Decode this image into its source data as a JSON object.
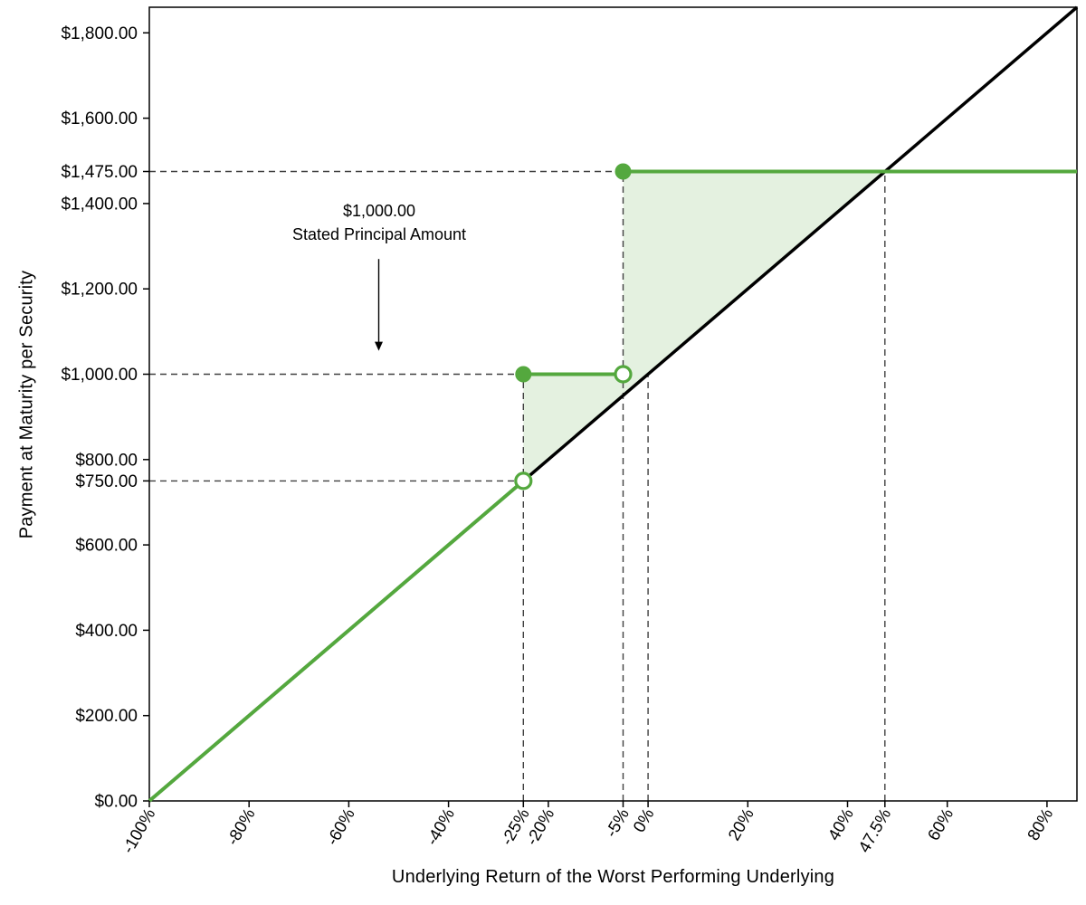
{
  "chart_data": {
    "type": "line",
    "title": "",
    "xlabel": "Underlying Return of the Worst Performing Underlying",
    "ylabel": "Payment at Maturity per Security",
    "xlim": [
      -100,
      86
    ],
    "ylim": [
      0,
      1860
    ],
    "grid": false,
    "legend": "none",
    "x_ticks": [
      {
        "v": -100,
        "label": "-100%"
      },
      {
        "v": -80,
        "label": "-80%"
      },
      {
        "v": -60,
        "label": "-60%"
      },
      {
        "v": -40,
        "label": "-40%"
      },
      {
        "v": -25,
        "label": "-25%"
      },
      {
        "v": -20,
        "label": "-20%"
      },
      {
        "v": -5,
        "label": "-5%"
      },
      {
        "v": 0,
        "label": "0%"
      },
      {
        "v": 20,
        "label": "20%"
      },
      {
        "v": 40,
        "label": "40%"
      },
      {
        "v": 47.5,
        "label": "47.5%"
      },
      {
        "v": 60,
        "label": "60%"
      },
      {
        "v": 80,
        "label": "80%"
      }
    ],
    "y_ticks": [
      {
        "v": 0,
        "label": "$0.00"
      },
      {
        "v": 200,
        "label": "$200.00"
      },
      {
        "v": 400,
        "label": "$400.00"
      },
      {
        "v": 600,
        "label": "$600.00"
      },
      {
        "v": 750,
        "label": "$750.00"
      },
      {
        "v": 800,
        "label": "$800.00"
      },
      {
        "v": 1000,
        "label": "$1,000.00"
      },
      {
        "v": 1200,
        "label": "$1,200.00"
      },
      {
        "v": 1400,
        "label": "$1,400.00"
      },
      {
        "v": 1475,
        "label": "$1,475.00"
      },
      {
        "v": 1600,
        "label": "$1,600.00"
      },
      {
        "v": 1800,
        "label": "$1,800.00"
      }
    ],
    "series": [
      {
        "name": "underlying-return-line",
        "color": "#000000",
        "width": 3.5,
        "segments": [
          [
            [
              -100,
              0
            ],
            [
              86,
              1860
            ]
          ]
        ]
      },
      {
        "name": "payment-at-maturity-line",
        "color": "#54a83e",
        "width": 4,
        "segments": [
          [
            [
              -100,
              0
            ],
            [
              -25,
              750
            ]
          ],
          [
            [
              -25,
              1000
            ],
            [
              -5,
              1000
            ]
          ],
          [
            [
              -5,
              1475
            ],
            [
              86,
              1475
            ]
          ]
        ],
        "open_markers": [
          [
            -25,
            750
          ],
          [
            -5,
            1000
          ]
        ],
        "filled_markers": [
          [
            -25,
            1000
          ],
          [
            -5,
            1475
          ]
        ]
      }
    ],
    "fill_region": {
      "polygon": [
        [
          -25,
          750
        ],
        [
          -25,
          1000
        ],
        [
          -5,
          1000
        ],
        [
          -5,
          1475
        ],
        [
          47.5,
          1475
        ]
      ],
      "color": "#54a83e",
      "opacity": 0.16
    },
    "guide_color": "#404040",
    "guides": [
      {
        "type": "h",
        "y": 1475,
        "x_to": -5
      },
      {
        "type": "h",
        "y": 1000,
        "x_to": -25
      },
      {
        "type": "h",
        "y": 750,
        "x_to": -25
      },
      {
        "type": "v",
        "x": -25,
        "y_to": 1000
      },
      {
        "type": "v",
        "x": -5,
        "y_to": 1475
      },
      {
        "type": "v",
        "x": 0,
        "y_to": 1000
      },
      {
        "type": "v",
        "x": 47.5,
        "y_to": 1475
      }
    ],
    "annotation": {
      "lines": [
        "$1,000.00",
        "Stated Principal Amount"
      ],
      "arrow": {
        "x": -54,
        "y_from": 1270,
        "y_to": 1055
      }
    }
  }
}
